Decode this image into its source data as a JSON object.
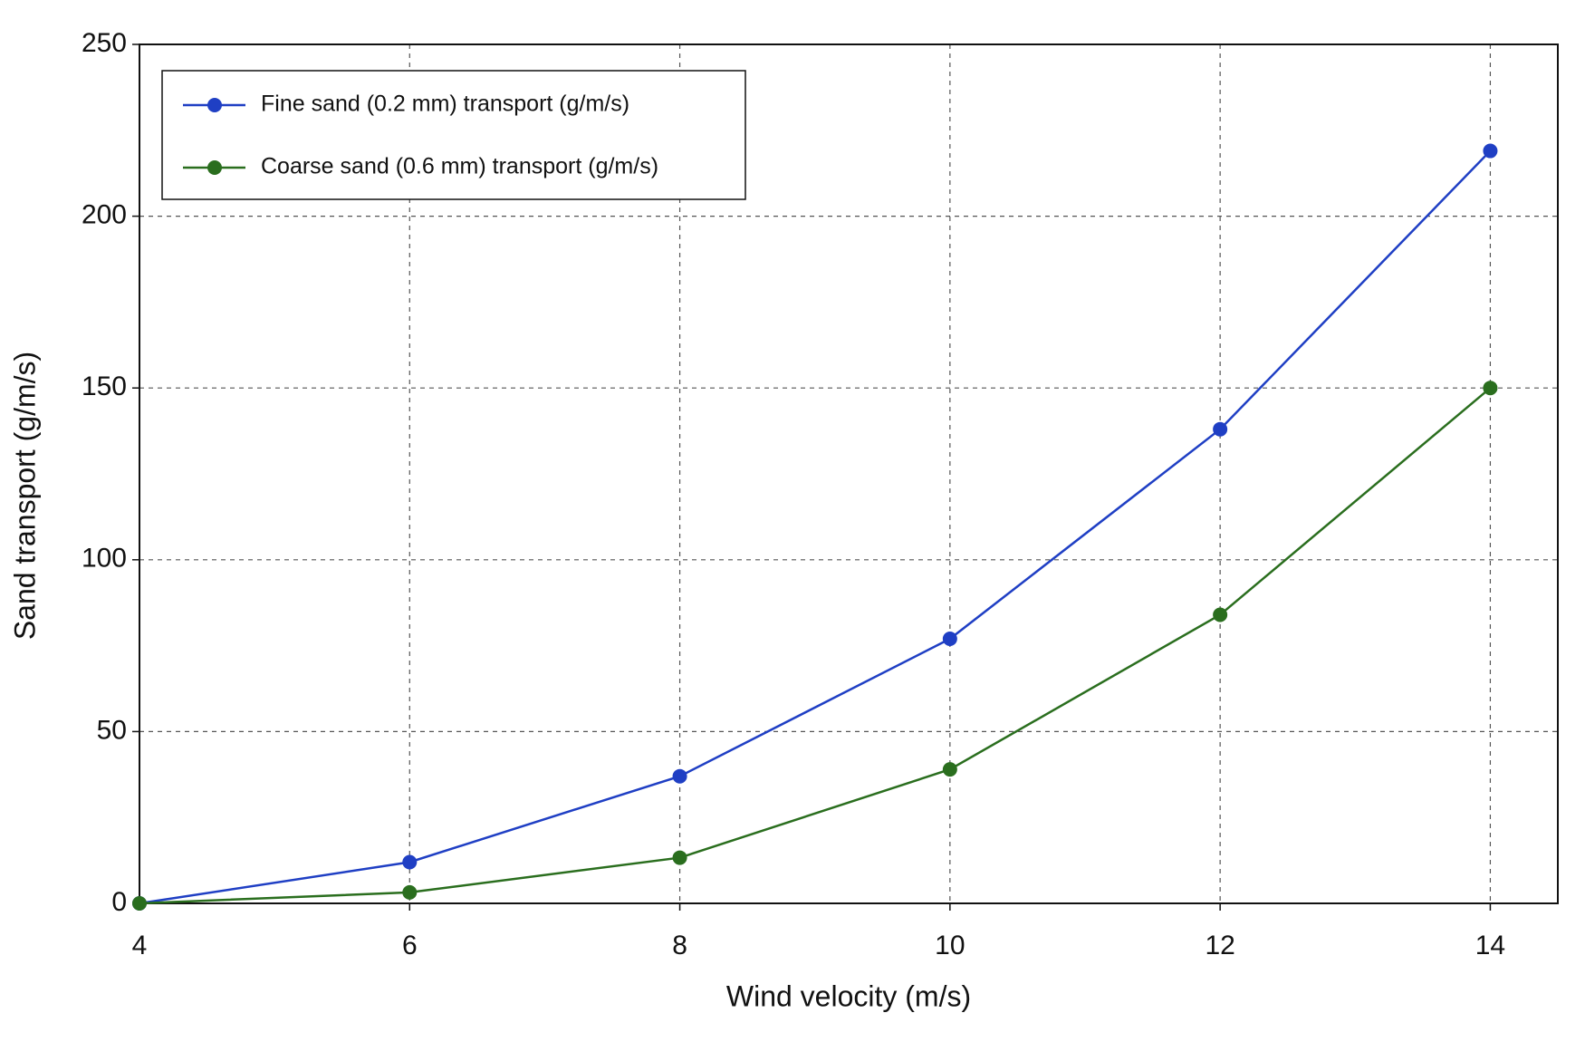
{
  "chart_data": {
    "type": "line",
    "x_label": "Wind velocity (m/s)",
    "y_label": "Sand transport (g/m/s)",
    "x": [
      4,
      6,
      8,
      10,
      12,
      14
    ],
    "series": [
      {
        "name": "Fine sand (0.2 mm) transport (g/m/s)",
        "color": "#1f3fc4",
        "values": [
          0,
          12,
          37,
          77,
          138,
          219
        ]
      },
      {
        "name": "Coarse sand (0.6 mm) transport (g/m/s)",
        "color": "#2a6e1e",
        "values": [
          0,
          3.2,
          13.3,
          39,
          84,
          150
        ]
      }
    ],
    "xlim": [
      4,
      14.5
    ],
    "ylim": [
      0,
      250
    ],
    "xticks": [
      4,
      6,
      8,
      10,
      12,
      14
    ],
    "yticks": [
      0,
      50,
      100,
      150,
      200,
      250
    ],
    "grid": true,
    "legend": "upper-left"
  }
}
